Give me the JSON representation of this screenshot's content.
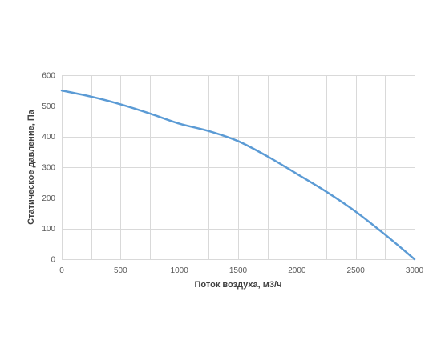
{
  "chart_data": {
    "type": "line",
    "title": "",
    "xlabel": "Поток воздуха, м3/ч",
    "ylabel": "Статическое давление, Па",
    "xlim": [
      0,
      3000
    ],
    "ylim": [
      0,
      600
    ],
    "x_ticks": [
      0,
      500,
      1000,
      1500,
      2000,
      2500,
      3000
    ],
    "x_minor_step": 250,
    "y_ticks": [
      0,
      100,
      200,
      300,
      400,
      500,
      600
    ],
    "grid": true,
    "legend": "none",
    "series": [
      {
        "color": "#5b9bd5",
        "x": [
          0,
          250,
          500,
          750,
          1000,
          1250,
          1500,
          1750,
          2000,
          2250,
          2500,
          2750,
          3000
        ],
        "y": [
          550,
          530,
          505,
          475,
          442,
          418,
          385,
          335,
          278,
          220,
          155,
          80,
          0
        ]
      }
    ]
  }
}
